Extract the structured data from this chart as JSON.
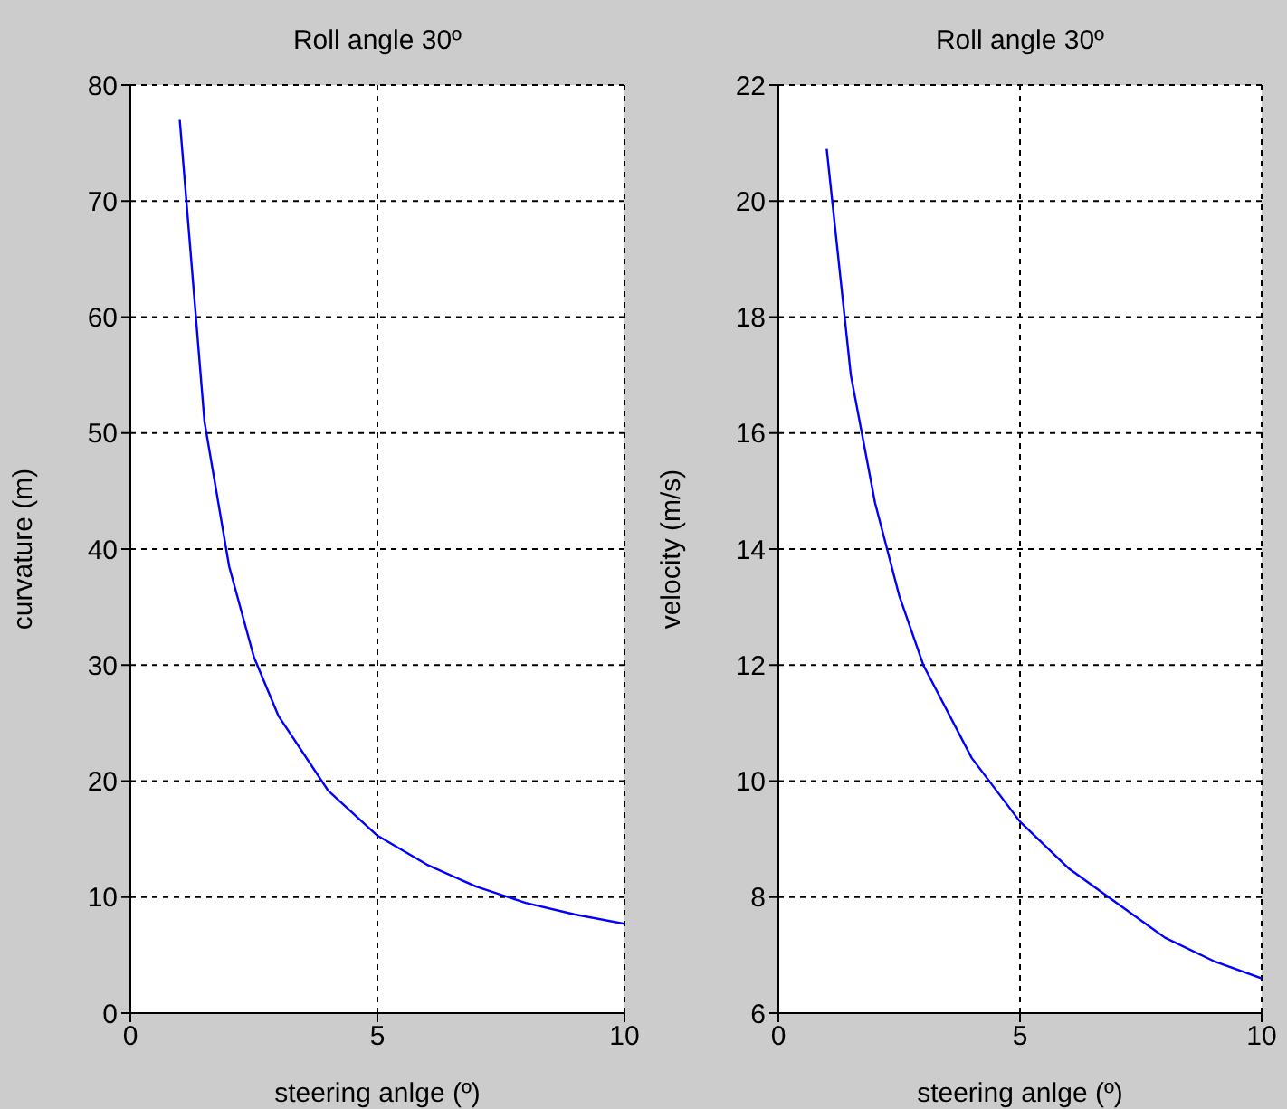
{
  "chart_data": [
    {
      "type": "line",
      "title": "Roll angle 30º",
      "xlabel": "steering anlge (º)",
      "ylabel": "curvature (m)",
      "x": [
        1,
        1.5,
        2,
        2.5,
        3,
        4,
        5,
        6,
        7,
        8,
        9,
        10
      ],
      "values": [
        77,
        51,
        38.5,
        30.7,
        25.6,
        19.2,
        15.3,
        12.8,
        10.9,
        9.5,
        8.5,
        7.7
      ],
      "color": "#0000ff",
      "xlim": [
        0,
        10
      ],
      "ylim": [
        0,
        80
      ],
      "xticks": [
        0,
        5,
        10
      ],
      "yticks": [
        0,
        10,
        20,
        30,
        40,
        50,
        60,
        70,
        80
      ],
      "grid": true
    },
    {
      "type": "line",
      "title": "Roll angle 30º",
      "xlabel": "steering anlge (º)",
      "ylabel": "velocity (m/s)",
      "x": [
        1,
        1.5,
        2,
        2.5,
        3,
        4,
        5,
        6,
        7,
        8,
        9,
        10
      ],
      "values": [
        20.9,
        17.0,
        14.8,
        13.2,
        12.0,
        10.4,
        9.3,
        8.5,
        7.9,
        7.3,
        6.9,
        6.6
      ],
      "color": "#0000ff",
      "xlim": [
        0,
        10
      ],
      "ylim": [
        6,
        22
      ],
      "xticks": [
        0,
        5,
        10
      ],
      "yticks": [
        6,
        8,
        10,
        12,
        14,
        16,
        18,
        20,
        22
      ],
      "grid": true
    }
  ]
}
